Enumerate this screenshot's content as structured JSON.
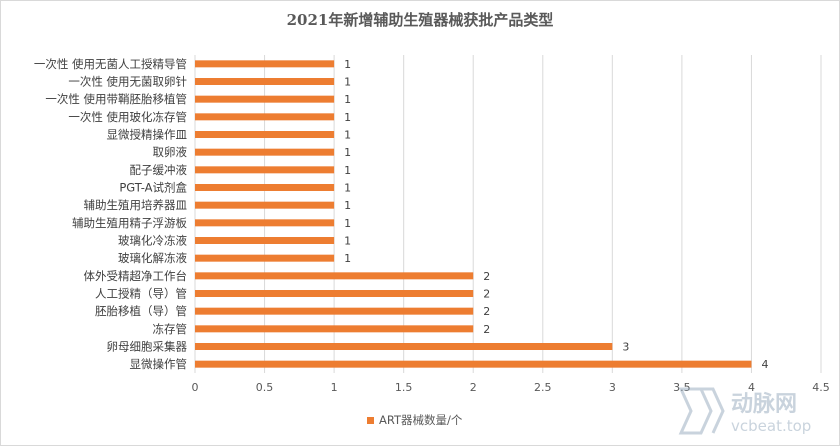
{
  "chart_data": {
    "type": "bar",
    "orientation": "horizontal",
    "title": "2021年新增辅助生殖器械获批产品类型",
    "categories": [
      "一次性 使用无菌人工授精导管",
      "一次性 使用无菌取卵针",
      "一次性 使用带鞘胚胎移植管",
      "一次性 使用玻化冻存管",
      "显微授精操作皿",
      "取卵液",
      "配子缓冲液",
      "PGT-A试剂盒",
      "辅助生殖用培养器皿",
      "辅助生殖用精子浮游板",
      "玻璃化冷冻液",
      "玻璃化解冻液",
      "体外受精超净工作台",
      "人工授精（导）管",
      "胚胎移植（导）管",
      "冻存管",
      "卵母细胞采集器",
      "显微操作管"
    ],
    "series": [
      {
        "name": "ART器械数量/个",
        "values": [
          1,
          1,
          1,
          1,
          1,
          1,
          1,
          1,
          1,
          1,
          1,
          1,
          2,
          2,
          2,
          2,
          3,
          4
        ]
      }
    ],
    "xlim": [
      0,
      4.5
    ],
    "x_ticks": [
      "0",
      "0.5",
      "1",
      "1.5",
      "2",
      "2.5",
      "3",
      "3.5",
      "4",
      "4.5"
    ],
    "grid": "vertical",
    "legend_position": "bottom",
    "bar_color": "#ED7D31"
  },
  "watermark": {
    "brand": "动脉网",
    "url": "vcbeat.top"
  }
}
